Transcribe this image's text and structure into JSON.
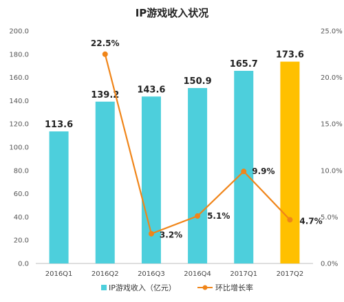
{
  "chart_data": {
    "type": "bar+line",
    "title": "IP游戏收入状况",
    "categories": [
      "2016Q1",
      "2016Q2",
      "2016Q3",
      "2016Q4",
      "2017Q1",
      "2017Q2"
    ],
    "series": [
      {
        "name": "IP游戏收入（亿元）",
        "type": "bar",
        "axis": "left",
        "values": [
          113.6,
          139.2,
          143.6,
          150.9,
          165.7,
          173.6
        ],
        "labels": [
          "113.6",
          "139.2",
          "143.6",
          "150.9",
          "165.7",
          "173.6"
        ],
        "color": "#4dcfdc",
        "highlight_color": "#ffc000",
        "highlight_index": 5
      },
      {
        "name": "环比增长率",
        "type": "line",
        "axis": "right",
        "values": [
          null,
          22.5,
          3.2,
          5.1,
          9.9,
          4.7
        ],
        "labels": [
          "",
          "22.5%",
          "3.2%",
          "5.1%",
          "9.9%",
          "4.7%"
        ],
        "color": "#f08519"
      }
    ],
    "y_left": {
      "range": [
        0,
        200
      ],
      "ticks": [
        "0.0",
        "20.0",
        "40.0",
        "60.0",
        "80.0",
        "100.0",
        "120.0",
        "140.0",
        "160.0",
        "180.0",
        "200.0"
      ]
    },
    "y_right": {
      "range": [
        0,
        25
      ],
      "ticks": [
        "0.0%",
        "5.0%",
        "10.0%",
        "15.0%",
        "20.0%",
        "25.0%"
      ]
    },
    "grid": false,
    "legend_position": "bottom-center"
  }
}
